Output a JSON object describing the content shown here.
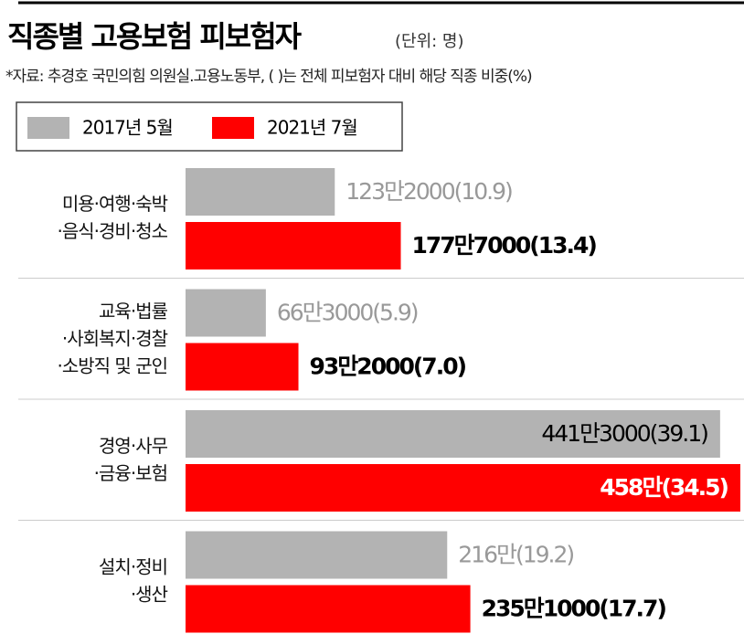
{
  "chart_data": {
    "type": "bar",
    "orientation": "horizontal",
    "title": "직종별 고용보험 피보험자",
    "unit": "(단위: 명)",
    "note": "*자료: 추경호 국민의힘 의원실.고용노동부, (    )는 전체 피보험자 대비 해당 직종 비중(%)",
    "categories": [
      [
        "미용·여행·숙박",
        "·음식·경비·청소"
      ],
      [
        "교육·법률",
        "·사회복지·경찰",
        "·소방직 및 군인"
      ],
      [
        "경영·사무",
        "·금융·보험"
      ],
      [
        "설치·정비",
        "·생산"
      ]
    ],
    "series": [
      {
        "name": "2017년 5월",
        "color": "#b3b3b3",
        "values": [
          1232000,
          663000,
          4413000,
          2160000
        ],
        "value_labels": [
          "123만2000(10.9)",
          "66만3000(5.9)",
          "441만3000(39.1)",
          "216만(19.2)"
        ]
      },
      {
        "name": "2021년 7월",
        "color": "#ff0000",
        "values": [
          1777000,
          932000,
          4580000,
          2351000
        ],
        "value_labels": [
          "177만7000(13.4)",
          "93만2000(7.0)",
          "458만(34.5)",
          "235만1000(17.7)"
        ]
      }
    ]
  }
}
